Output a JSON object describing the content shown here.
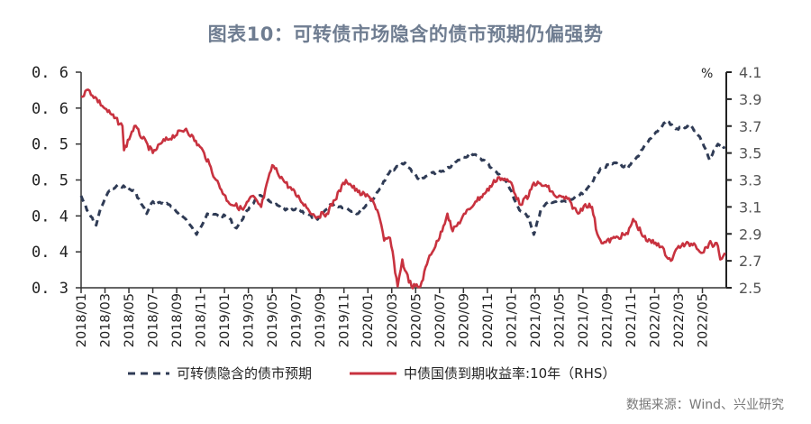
{
  "title": "图表10：可转债市场隐含的债市预期仍偏强势",
  "source": "数据来源：Wind、兴业研究",
  "chart_data": {
    "type": "line",
    "title": "图表10：可转债市场隐含的债市预期仍偏强势",
    "x_tick_labels": [
      "2018/01",
      "2018/03",
      "2018/05",
      "2018/07",
      "2018/09",
      "2018/11",
      "2019/01",
      "2019/03",
      "2019/05",
      "2019/07",
      "2019/09",
      "2019/11",
      "2020/01",
      "2020/03",
      "2020/05",
      "2020/07",
      "2020/09",
      "2020/11",
      "2021/01",
      "2021/03",
      "2021/05",
      "2021/07",
      "2021/09",
      "2021/11",
      "2022/01",
      "2022/03",
      "2022/05"
    ],
    "left_axis": {
      "ylim": [
        0.3,
        0.6
      ],
      "tick_labels": [
        "0.6",
        "0.6",
        "0.5",
        "0.5",
        "0.4",
        "0.4",
        "0.3"
      ]
    },
    "right_axis": {
      "ylim": [
        2.5,
        4.1
      ],
      "unit": "%",
      "tick_labels": [
        "4.1",
        "3.9",
        "3.7",
        "3.5",
        "3.3",
        "3.1",
        "2.9",
        "2.7",
        "2.5"
      ]
    },
    "grid": false,
    "legend_placement": "bottom",
    "series": [
      {
        "name": "可转债隐含的债市预期",
        "axis": "left",
        "style": "dashed",
        "color": "#2f3b55",
        "x": [
          "2018-01-01",
          "2018-01-16",
          "2018-02-09",
          "2018-02-21",
          "2018-03-09",
          "2018-04-07",
          "2018-05-16",
          "2018-06-16",
          "2018-07-01",
          "2018-08-10",
          "2018-09-25",
          "2018-10-21",
          "2018-11-18",
          "2019-01-10",
          "2019-02-01",
          "2019-03-04",
          "2019-03-28",
          "2019-04-25",
          "2019-06-04",
          "2019-07-10",
          "2019-08-25",
          "2019-09-27",
          "2019-11-03",
          "2019-12-06",
          "2020-01-21",
          "2020-02-27",
          "2020-04-04",
          "2020-05-13",
          "2020-06-06",
          "2020-07-12",
          "2020-08-21",
          "2020-09-21",
          "2020-10-21",
          "2020-11-21",
          "2020-12-21",
          "2021-01-22",
          "2021-02-15",
          "2021-02-28",
          "2021-03-15",
          "2021-04-06",
          "2021-05-22",
          "2021-07-07",
          "2021-08-15",
          "2021-09-22",
          "2021-10-24",
          "2021-11-24",
          "2021-12-22",
          "2022-02-01",
          "2022-02-24",
          "2022-04-03",
          "2022-05-01",
          "2022-05-19",
          "2022-06-10",
          "2022-06-28"
        ],
        "y": [
          0.428,
          0.408,
          0.387,
          0.412,
          0.433,
          0.443,
          0.434,
          0.403,
          0.42,
          0.416,
          0.395,
          0.374,
          0.403,
          0.399,
          0.383,
          0.412,
          0.428,
          0.42,
          0.408,
          0.408,
          0.395,
          0.416,
          0.412,
          0.403,
          0.428,
          0.462,
          0.474,
          0.449,
          0.458,
          0.462,
          0.478,
          0.487,
          0.478,
          0.462,
          0.446,
          0.408,
          0.399,
          0.374,
          0.408,
          0.42,
          0.42,
          0.433,
          0.466,
          0.474,
          0.466,
          0.487,
          0.508,
          0.533,
          0.521,
          0.525,
          0.503,
          0.478,
          0.5,
          0.496
        ]
      },
      {
        "name": "中债国债到期收益率:10年（RHS）",
        "axis": "right",
        "style": "solid",
        "color": "#c8323f",
        "x": [
          "2018-01-01",
          "2018-01-19",
          "2018-03-01",
          "2018-04-15",
          "2018-04-19",
          "2018-05-15",
          "2018-07-01",
          "2018-07-25",
          "2018-09-25",
          "2018-11-10",
          "2018-12-10",
          "2019-01-10",
          "2019-02-18",
          "2019-03-10",
          "2019-04-03",
          "2019-05-01",
          "2019-06-04",
          "2019-07-10",
          "2019-08-18",
          "2019-09-18",
          "2019-11-06",
          "2019-12-06",
          "2020-01-12",
          "2020-01-28",
          "2020-02-12",
          "2020-02-27",
          "2020-03-16",
          "2020-03-28",
          "2020-04-04",
          "2020-04-21",
          "2020-05-13",
          "2020-06-06",
          "2020-06-28",
          "2020-07-21",
          "2020-08-04",
          "2020-09-06",
          "2020-10-01",
          "2020-10-28",
          "2020-11-28",
          "2021-01-01",
          "2021-01-22",
          "2021-02-15",
          "2021-02-28",
          "2021-04-01",
          "2021-04-22",
          "2021-05-22",
          "2021-06-19",
          "2021-07-07",
          "2021-07-24",
          "2021-08-07",
          "2021-08-22",
          "2021-09-22",
          "2021-10-24",
          "2021-11-07",
          "2021-12-10",
          "2022-01-10",
          "2022-02-12",
          "2022-03-01",
          "2022-04-10",
          "2022-05-01",
          "2022-05-18",
          "2022-06-10",
          "2022-06-16",
          "2022-06-28"
        ],
        "y": [
          3.92,
          3.97,
          3.83,
          3.7,
          3.52,
          3.7,
          3.5,
          3.58,
          3.68,
          3.5,
          3.3,
          3.14,
          3.08,
          3.18,
          3.1,
          3.41,
          3.28,
          3.16,
          3.03,
          3.05,
          3.3,
          3.21,
          3.16,
          3.05,
          2.85,
          2.87,
          2.51,
          2.71,
          2.63,
          2.51,
          2.51,
          2.74,
          2.85,
          3.05,
          2.92,
          3.05,
          3.14,
          3.21,
          3.32,
          3.28,
          3.12,
          3.18,
          3.28,
          3.25,
          3.18,
          3.16,
          3.05,
          3.12,
          3.1,
          2.9,
          2.83,
          2.87,
          2.9,
          3.01,
          2.85,
          2.83,
          2.7,
          2.81,
          2.83,
          2.76,
          2.83,
          2.81,
          2.71,
          2.76
        ]
      }
    ]
  }
}
